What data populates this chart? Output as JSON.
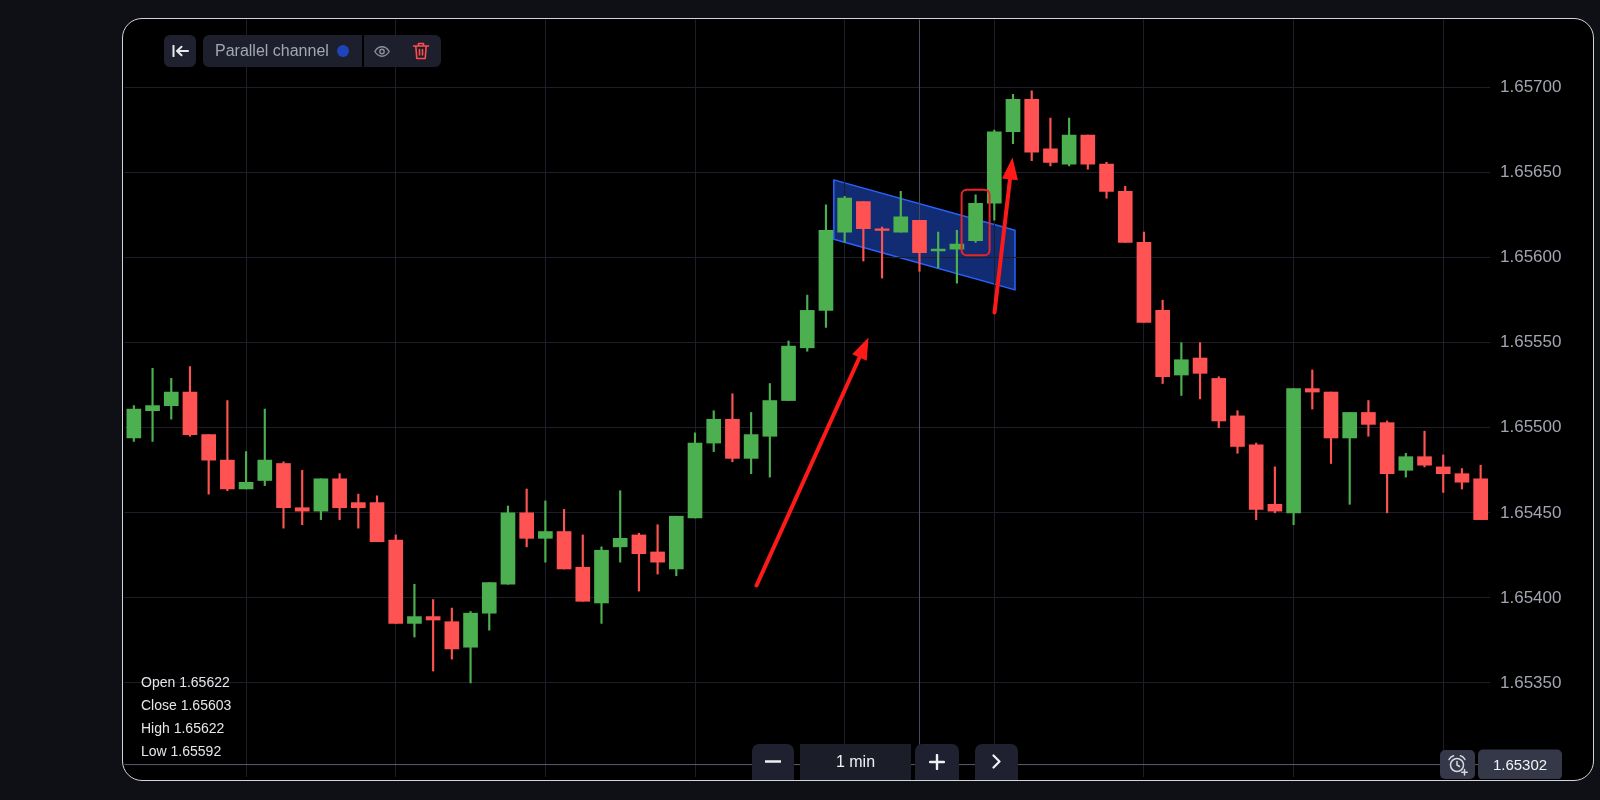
{
  "chart_data": {
    "type": "candlestick",
    "categories": [
      null,
      null,
      null,
      null,
      null,
      null,
      null,
      null,
      null,
      null,
      null,
      null,
      null,
      null,
      null,
      null,
      null,
      null,
      null,
      null,
      null,
      null,
      null,
      null,
      null,
      null,
      null,
      null,
      null,
      null,
      null,
      null,
      null,
      null,
      null,
      null,
      null,
      null,
      null,
      null,
      null,
      null,
      null,
      null,
      null,
      null,
      null,
      null,
      null,
      null,
      null,
      null,
      null,
      null,
      null,
      null,
      null,
      null,
      null,
      null,
      null,
      null,
      null,
      null,
      null,
      null,
      null,
      null,
      null,
      null,
      null,
      null,
      null
    ],
    "ohlc": [
      [
        1.65494,
        1.65513,
        1.65492,
        1.65511
      ],
      [
        1.6551,
        1.65535,
        1.65492,
        1.65513
      ],
      [
        1.65513,
        1.65529,
        1.65505,
        1.65521
      ],
      [
        1.65521,
        1.65536,
        1.65495,
        1.65496
      ],
      [
        1.65496,
        1.65496,
        1.65461,
        1.65481
      ],
      [
        1.65481,
        1.65516,
        1.65463,
        1.65464
      ],
      [
        1.65464,
        1.65486,
        1.65464,
        1.65468
      ],
      [
        1.65469,
        1.65511,
        1.65466,
        1.65481
      ],
      [
        1.65479,
        1.6548,
        1.65441,
        1.65453
      ],
      [
        1.65453,
        1.65475,
        1.65443,
        1.65451
      ],
      [
        1.65451,
        1.6547,
        1.65446,
        1.6547
      ],
      [
        1.6547,
        1.65473,
        1.65446,
        1.65453
      ],
      [
        1.65456,
        1.65461,
        1.65441,
        1.65453
      ],
      [
        1.65456,
        1.6546,
        1.65433,
        1.65433
      ],
      [
        1.65434,
        1.65437,
        1.65385,
        1.65385
      ],
      [
        1.65385,
        1.65408,
        1.65377,
        1.65389
      ],
      [
        1.65389,
        1.65399,
        1.65357,
        1.65387
      ],
      [
        1.65386,
        1.65394,
        1.65364,
        1.6537
      ],
      [
        1.65371,
        1.65392,
        1.6535,
        1.65391
      ],
      [
        1.65391,
        1.65409,
        1.65381,
        1.65409
      ],
      [
        1.65408,
        1.65454,
        1.65408,
        1.6545
      ],
      [
        1.6545,
        1.65464,
        1.6543,
        1.65435
      ],
      [
        1.65435,
        1.65457,
        1.65421,
        1.65439
      ],
      [
        1.65439,
        1.65452,
        1.65417,
        1.65417
      ],
      [
        1.65418,
        1.65437,
        1.65398,
        1.65398
      ],
      [
        1.65397,
        1.6543,
        1.65385,
        1.65428
      ],
      [
        1.6543,
        1.65463,
        1.65421,
        1.65435
      ],
      [
        1.65437,
        1.65438,
        1.65404,
        1.65426
      ],
      [
        1.65427,
        1.65443,
        1.65414,
        1.65421
      ],
      [
        1.65417,
        1.65448,
        1.65413,
        1.65448
      ],
      [
        1.65447,
        1.65497,
        1.65447,
        1.65491
      ],
      [
        1.65491,
        1.6551,
        1.65486,
        1.65505
      ],
      [
        1.65505,
        1.6552,
        1.6548,
        1.65482
      ],
      [
        1.65482,
        1.65509,
        1.65473,
        1.65496
      ],
      [
        1.65495,
        1.65526,
        1.65471,
        1.65516
      ],
      [
        1.65516,
        1.65551,
        1.65516,
        1.65548
      ],
      [
        1.65547,
        1.65578,
        1.65545,
        1.65569
      ],
      [
        1.65569,
        1.65631,
        1.65559,
        1.65616
      ],
      [
        1.65615,
        1.65636,
        1.65609,
        1.65635
      ],
      [
        1.65633,
        1.65633,
        1.65598,
        1.65617
      ],
      [
        1.65617,
        1.65618,
        1.65588,
        1.65616
      ],
      [
        1.65615,
        1.65639,
        1.65615,
        1.65624
      ],
      [
        1.65622,
        1.65622,
        1.65592,
        1.65603
      ],
      [
        1.65604,
        1.65615,
        1.65594,
        1.65605
      ],
      [
        1.65605,
        1.65616,
        1.65585,
        1.65608
      ],
      [
        1.6561,
        1.65637,
        1.65609,
        1.65632
      ],
      [
        1.65632,
        1.65675,
        1.65622,
        1.65674
      ],
      [
        1.65674,
        1.65696,
        1.65667,
        1.65693
      ],
      [
        1.65693,
        1.65698,
        1.65657,
        1.65662
      ],
      [
        1.65664,
        1.65682,
        1.65654,
        1.65656
      ],
      [
        1.65655,
        1.65682,
        1.65654,
        1.65672
      ],
      [
        1.65672,
        1.65672,
        1.65652,
        1.65655
      ],
      [
        1.65655,
        1.65656,
        1.65635,
        1.65639
      ],
      [
        1.65639,
        1.65642,
        1.65609,
        1.65609
      ],
      [
        1.65609,
        1.65615,
        1.65562,
        1.65562
      ],
      [
        1.65569,
        1.65575,
        1.65526,
        1.6553
      ],
      [
        1.65531,
        1.6555,
        1.65519,
        1.6554
      ],
      [
        1.65541,
        1.6555,
        1.65517,
        1.65532
      ],
      [
        1.65529,
        1.6553,
        1.655,
        1.65504
      ],
      [
        1.65507,
        1.6551,
        1.65485,
        1.65489
      ],
      [
        1.6549,
        1.65491,
        1.65446,
        1.65452
      ],
      [
        1.65455,
        1.65477,
        1.6545,
        1.65451
      ],
      [
        1.6545,
        1.65523,
        1.65443,
        1.65523
      ],
      [
        1.65523,
        1.65534,
        1.65511,
        1.65521
      ],
      [
        1.65521,
        1.65521,
        1.65479,
        1.65494
      ],
      [
        1.65494,
        1.65509,
        1.65455,
        1.65509
      ],
      [
        1.65509,
        1.65516,
        1.65495,
        1.65502
      ],
      [
        1.65503,
        1.65504,
        1.6545,
        1.65473
      ],
      [
        1.65475,
        1.65485,
        1.65471,
        1.65483
      ],
      [
        1.65483,
        1.65498,
        1.65477,
        1.65478
      ],
      [
        1.65477,
        1.65484,
        1.65462,
        1.65473
      ],
      [
        1.65473,
        1.65476,
        1.65464,
        1.65468
      ],
      [
        1.6547,
        1.65478,
        1.65446,
        1.65446
      ]
    ],
    "colors": [
      "#4caf50",
      "#4caf50",
      "#4caf50",
      "#ff5252",
      "#ff5252",
      "#ff5252",
      "#4caf50",
      "#4caf50",
      "#ff5252",
      "#ff5252",
      "#4caf50",
      "#ff5252",
      "#ff5252",
      "#ff5252",
      "#ff5252",
      "#4caf50",
      "#ff5252",
      "#ff5252",
      "#4caf50",
      "#4caf50",
      "#4caf50",
      "#ff5252",
      "#4caf50",
      "#ff5252",
      "#ff5252",
      "#4caf50",
      "#4caf50",
      "#ff5252",
      "#ff5252",
      "#4caf50",
      "#4caf50",
      "#4caf50",
      "#ff5252",
      "#4caf50",
      "#4caf50",
      "#4caf50",
      "#4caf50",
      "#4caf50",
      "#4caf50",
      "#ff5252",
      "#ff5252",
      "#4caf50",
      "#ff5252",
      "#4caf50",
      "#4caf50",
      "#4caf50",
      "#4caf50",
      "#4caf50",
      "#ff5252",
      "#ff5252",
      "#4caf50",
      "#ff5252",
      "#ff5252",
      "#ff5252",
      "#ff5252",
      "#ff5252",
      "#4caf50",
      "#ff5252",
      "#ff5252",
      "#ff5252",
      "#ff5252",
      "#ff5252",
      "#4caf50",
      "#ff5252",
      "#ff5252",
      "#4caf50",
      "#ff5252",
      "#ff5252",
      "#4caf50",
      "#ff5252",
      "#ff5252",
      "#ff5252",
      "#ff5252"
    ],
    "ylim": [
      1.65295,
      1.6574
    ],
    "yticks": [
      {
        "value": 1.6535,
        "label": "1.65350"
      },
      {
        "value": 1.654,
        "label": "1.65400"
      },
      {
        "value": 1.6545,
        "label": "1.65450"
      },
      {
        "value": 1.655,
        "label": "1.65500"
      },
      {
        "value": 1.6555,
        "label": "1.65550"
      },
      {
        "value": 1.656,
        "label": "1.65600"
      },
      {
        "value": 1.6565,
        "label": "1.65650"
      },
      {
        "value": 1.657,
        "label": "1.65700"
      }
    ],
    "tick_labels": "y",
    "grid": true,
    "ref_lines": [
      {
        "axis": "y",
        "value": 1.65302,
        "label": "1.65302"
      }
    ],
    "annotations": [
      "Parallel channel",
      "Open 1.65622",
      "Close 1.65603",
      "High 1.65622",
      "Low 1.65592",
      "1 min"
    ]
  }
}
